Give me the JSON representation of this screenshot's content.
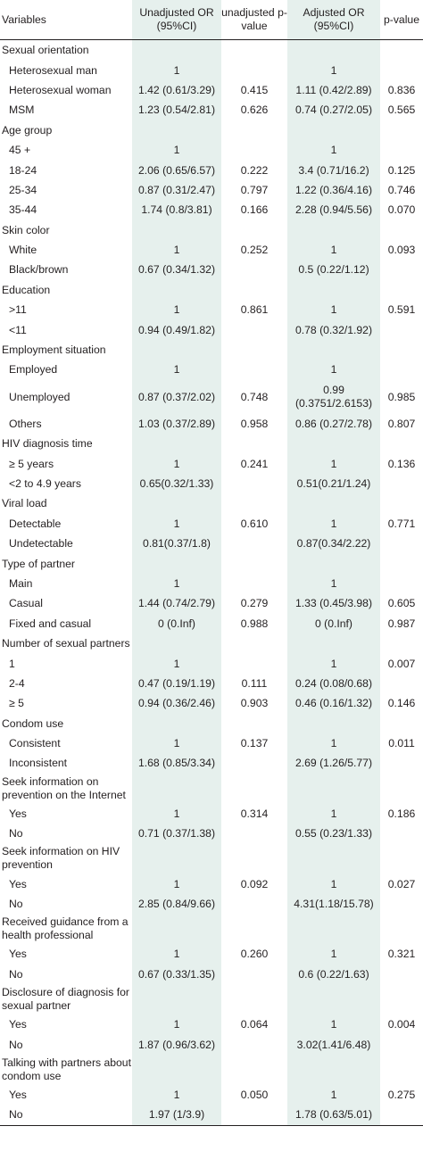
{
  "headers": {
    "variables": "Variables",
    "unadj_or": "Unadjusted OR (95%CI)",
    "unadj_p": "unadjusted p-value",
    "adj_or": "Adjusted OR (95%CI)",
    "adj_p": "p-value"
  },
  "rows": [
    {
      "type": "cat",
      "label": "Sexual orientation"
    },
    {
      "type": "sub",
      "label": "Heterosexual man",
      "or1": "1",
      "p1": "",
      "or2": "1",
      "p2": ""
    },
    {
      "type": "sub",
      "label": "Heterosexual woman",
      "or1": "1.42 (0.61/3.29)",
      "p1": "0.415",
      "or2": "1.11 (0.42/2.89)",
      "p2": "0.836"
    },
    {
      "type": "sub",
      "label": "MSM",
      "or1": "1.23 (0.54/2.81)",
      "p1": "0.626",
      "or2": "0.74 (0.27/2.05)",
      "p2": "0.565"
    },
    {
      "type": "cat",
      "label": "Age group"
    },
    {
      "type": "sub",
      "label": "45 +",
      "or1": "1",
      "p1": "",
      "or2": "1",
      "p2": ""
    },
    {
      "type": "sub",
      "label": "18-24",
      "or1": "2.06 (0.65/6.57)",
      "p1": "0.222",
      "or2": "3.4 (0.71/16.2)",
      "p2": "0.125"
    },
    {
      "type": "sub",
      "label": "25-34",
      "or1": "0.87 (0.31/2.47)",
      "p1": "0.797",
      "or2": "1.22 (0.36/4.16)",
      "p2": "0.746"
    },
    {
      "type": "sub",
      "label": "35-44",
      "or1": "1.74 (0.8/3.81)",
      "p1": "0.166",
      "or2": "2.28 (0.94/5.56)",
      "p2": "0.070"
    },
    {
      "type": "cat",
      "label": "Skin color"
    },
    {
      "type": "sub",
      "label": "White",
      "or1": "1",
      "p1": "0.252",
      "or2": "1",
      "p2": "0.093"
    },
    {
      "type": "sub",
      "label": "Black/brown",
      "or1": "0.67 (0.34/1.32)",
      "p1": "",
      "or2": "0.5 (0.22/1.12)",
      "p2": ""
    },
    {
      "type": "cat",
      "label": "Education"
    },
    {
      "type": "sub",
      "label": ">11",
      "or1": "1",
      "p1": "0.861",
      "or2": "1",
      "p2": "0.591"
    },
    {
      "type": "sub",
      "label": "<11",
      "or1": "0.94 (0.49/1.82)",
      "p1": "",
      "or2": "0.78 (0.32/1.92)",
      "p2": ""
    },
    {
      "type": "cat",
      "label": "Employment situation"
    },
    {
      "type": "sub",
      "label": "Employed",
      "or1": "1",
      "p1": "",
      "or2": "1",
      "p2": ""
    },
    {
      "type": "sub",
      "label": "Unemployed",
      "or1": "0.87 (0.37/2.02)",
      "p1": "0.748",
      "or2": "0.99 (0.3751/2.6153)",
      "p2": "0.985",
      "tall": true
    },
    {
      "type": "sub",
      "label": "Others",
      "or1": "1.03 (0.37/2.89)",
      "p1": "0.958",
      "or2": "0.86 (0.27/2.78)",
      "p2": "0.807"
    },
    {
      "type": "cat",
      "label": "HIV diagnosis time"
    },
    {
      "type": "sub",
      "label": "≥ 5 years",
      "or1": "1",
      "p1": "0.241",
      "or2": "1",
      "p2": "0.136"
    },
    {
      "type": "sub",
      "label": "<2 to 4.9 years",
      "or1": "0.65(0.32/1.33)",
      "p1": "",
      "or2": "0.51(0.21/1.24)",
      "p2": ""
    },
    {
      "type": "cat",
      "label": "Viral load"
    },
    {
      "type": "sub",
      "label": "Detectable",
      "or1": "1",
      "p1": "0.610",
      "or2": "1",
      "p2": "0.771"
    },
    {
      "type": "sub",
      "label": "Undetectable",
      "or1": "0.81(0.37/1.8)",
      "p1": "",
      "or2": "0.87(0.34/2.22)",
      "p2": ""
    },
    {
      "type": "cat",
      "label": "Type of partner"
    },
    {
      "type": "sub",
      "label": "Main",
      "or1": "1",
      "p1": "",
      "or2": "1",
      "p2": ""
    },
    {
      "type": "sub",
      "label": "Casual",
      "or1": "1.44 (0.74/2.79)",
      "p1": "0.279",
      "or2": "1.33 (0.45/3.98)",
      "p2": "0.605"
    },
    {
      "type": "sub",
      "label": "Fixed and casual",
      "or1": "0 (0.Inf)",
      "p1": "0.988",
      "or2": "0 (0.Inf)",
      "p2": "0.987"
    },
    {
      "type": "cat",
      "label": "Number of sexual partners"
    },
    {
      "type": "sub",
      "label": "1",
      "or1": "1",
      "p1": "",
      "or2": "1",
      "p2": "0.007"
    },
    {
      "type": "sub",
      "label": "2-4",
      "or1": "0.47 (0.19/1.19)",
      "p1": "0.111",
      "or2": "0.24 (0.08/0.68)",
      "p2": ""
    },
    {
      "type": "sub",
      "label": "≥ 5",
      "or1": "0.94 (0.36/2.46)",
      "p1": "0.903",
      "or2": "0.46 (0.16/1.32)",
      "p2": "0.146"
    },
    {
      "type": "cat",
      "label": "Condom use"
    },
    {
      "type": "sub",
      "label": "Consistent",
      "or1": "1",
      "p1": "0.137",
      "or2": "1",
      "p2": "0.011"
    },
    {
      "type": "sub",
      "label": "Inconsistent",
      "or1": "1.68 (0.85/3.34)",
      "p1": "",
      "or2": "2.69 (1.26/5.77)",
      "p2": ""
    },
    {
      "type": "cat2",
      "label": "Seek information on prevention on the Internet"
    },
    {
      "type": "sub",
      "label": "Yes",
      "or1": "1",
      "p1": "0.314",
      "or2": "1",
      "p2": "0.186"
    },
    {
      "type": "sub",
      "label": "No",
      "or1": "0.71 (0.37/1.38)",
      "p1": "",
      "or2": "0.55 (0.23/1.33)",
      "p2": ""
    },
    {
      "type": "cat2",
      "label": "Seek information on HIV prevention"
    },
    {
      "type": "sub",
      "label": "Yes",
      "or1": "1",
      "p1": "0.092",
      "or2": "1",
      "p2": "0.027"
    },
    {
      "type": "sub",
      "label": "No",
      "or1": "2.85 (0.84/9.66)",
      "p1": "",
      "or2": "4.31(1.18/15.78)",
      "p2": ""
    },
    {
      "type": "cat2",
      "label": "Received guidance from a health professional"
    },
    {
      "type": "sub",
      "label": "Yes",
      "or1": "1",
      "p1": "0.260",
      "or2": "1",
      "p2": "0.321"
    },
    {
      "type": "sub",
      "label": "No",
      "or1": "0.67 (0.33/1.35)",
      "p1": "",
      "or2": "0.6 (0.22/1.63)",
      "p2": ""
    },
    {
      "type": "cat2",
      "label": "Disclosure of diagnosis for sexual partner"
    },
    {
      "type": "sub",
      "label": "Yes",
      "or1": "1",
      "p1": "0.064",
      "or2": "1",
      "p2": "0.004"
    },
    {
      "type": "sub",
      "label": "No",
      "or1": "1.87 (0.96/3.62)",
      "p1": "",
      "or2": "3.02(1.41/6.48)",
      "p2": ""
    },
    {
      "type": "cat2",
      "label": "Talking with partners about condom use"
    },
    {
      "type": "sub",
      "label": "Yes",
      "or1": "1",
      "p1": "0.050",
      "or2": "1",
      "p2": "0.275"
    },
    {
      "type": "sub",
      "label": "No",
      "or1": "1.97 (1/3.9)",
      "p1": "",
      "or2": "1.78 (0.63/5.01)",
      "p2": ""
    }
  ]
}
